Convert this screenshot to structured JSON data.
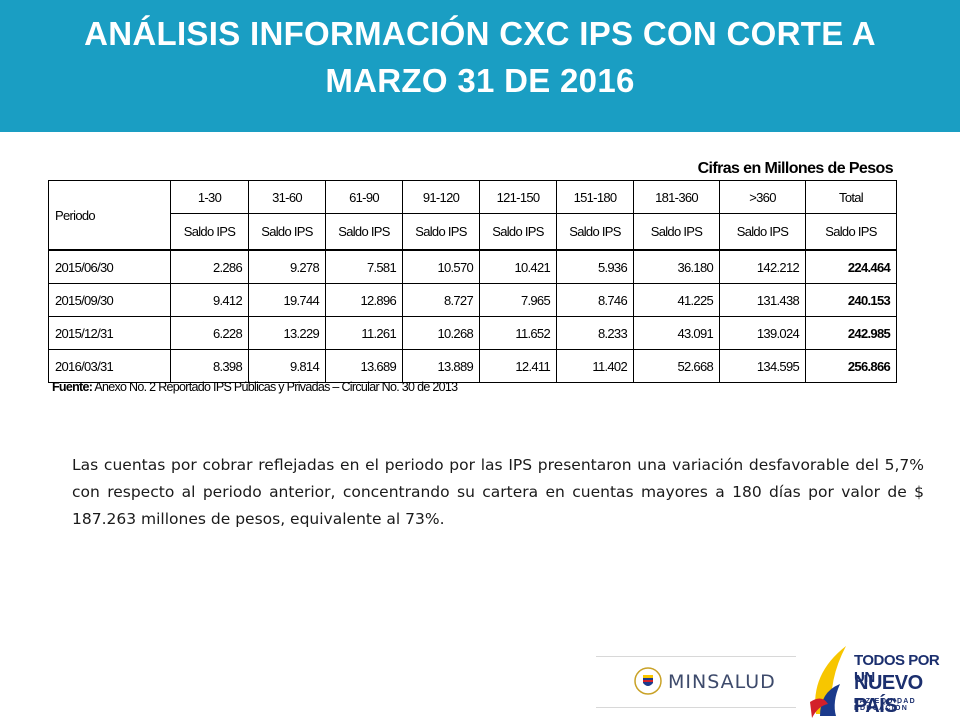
{
  "title": "ANÁLISIS INFORMACIÓN CXC IPS CON CORTE A MARZO 31 DE 2016",
  "units_note": "Cifras en Millones de Pesos",
  "table": {
    "periodo_header": "Periodo",
    "ranges": [
      "1-30",
      "31-60",
      "61-90",
      "91-120",
      "121-150",
      "151-180",
      "181-360",
      ">360",
      "Total"
    ],
    "sub_header": "Saldo IPS",
    "rows": [
      {
        "periodo": "2015/06/30",
        "values": [
          "2.286",
          "9.278",
          "7.581",
          "10.570",
          "10.421",
          "5.936",
          "36.180",
          "142.212"
        ],
        "total": "224.464"
      },
      {
        "periodo": "2015/09/30",
        "values": [
          "9.412",
          "19.744",
          "12.896",
          "8.727",
          "7.965",
          "8.746",
          "41.225",
          "131.438"
        ],
        "total": "240.153"
      },
      {
        "periodo": "2015/12/31",
        "values": [
          "6.228",
          "13.229",
          "11.261",
          "10.268",
          "11.652",
          "8.233",
          "43.091",
          "139.024"
        ],
        "total": "242.985"
      },
      {
        "periodo": "2016/03/31",
        "values": [
          "8.398",
          "9.814",
          "13.689",
          "13.889",
          "12.411",
          "11.402",
          "52.668",
          "134.595"
        ],
        "total": "256.866"
      }
    ]
  },
  "source": {
    "label": "Fuente:",
    "text": "Anexo No. 2 Reportado IPS Públicas y Privadas – Circular No. 30 de 2013"
  },
  "paragraph": "Las cuentas por cobrar reflejadas en el periodo por las IPS presentaron una variación desfavorable del 5,7% con respecto al periodo anterior, concentrando su cartera en cuentas mayores a 180 días por valor de $ 187.263 millones de pesos, equivalente al 73%.",
  "logos": {
    "minsalud": "MINSALUD",
    "tpun_line1": "TODOS POR UN",
    "tpun_line2": "NUEVO PAÍS",
    "tpun_line3": "PAZ  EQUIDAD  EDUCACIÓN"
  },
  "colors": {
    "banner": "#1a9ec3",
    "logo_blue": "#1b2f6e",
    "flag_yellow": "#f7c600",
    "flag_blue": "#1b3a8c",
    "flag_red": "#d3202a"
  }
}
